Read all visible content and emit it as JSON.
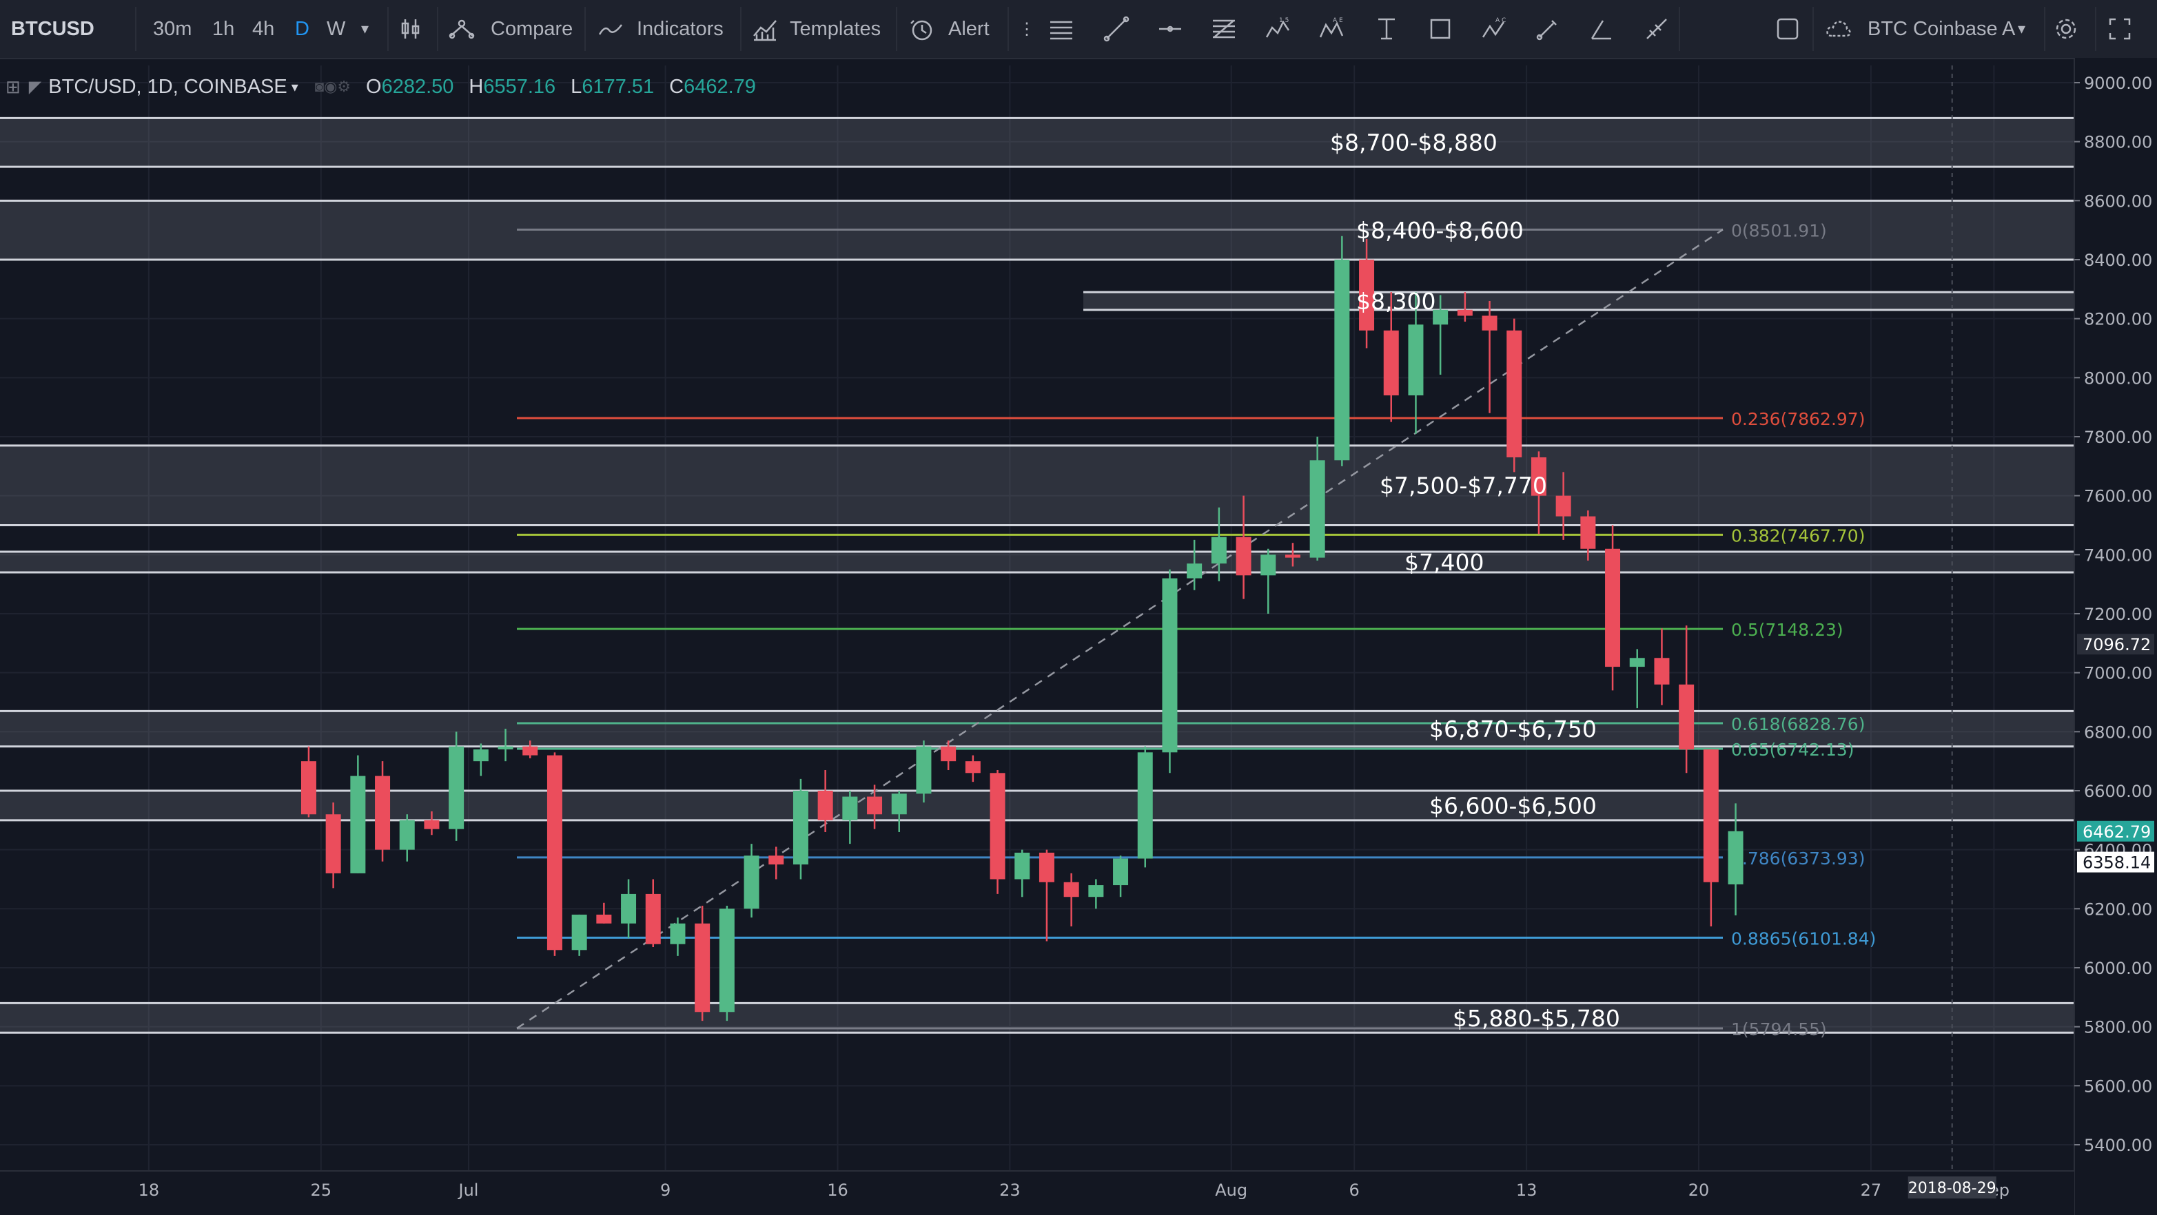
{
  "toolbar": {
    "symbol": "BTCUSD",
    "intervals": [
      "30m",
      "1h",
      "4h",
      "D",
      "W"
    ],
    "active_interval": "D",
    "compare_label": "Compare",
    "indicators_label": "Indicators",
    "templates_label": "Templates",
    "alert_label": "Alert",
    "layout_name": "BTC Coinbase A",
    "icons": [
      "chart-type-icon",
      "compare-icon",
      "indicators-icon",
      "templates-icon",
      "alert-icon",
      "horizontal-lines-icon",
      "trend-line-icon",
      "horizontal-ray-icon",
      "fib-retracement-icon",
      "pattern-15-icon",
      "pattern-ae-icon",
      "pattern-ac-icon",
      "text-tool-icon",
      "rectangle-icon",
      "brush-icon",
      "angle-icon",
      "measure-icon",
      "fullscreen-icon",
      "settings-icon",
      "cloud-icon"
    ]
  },
  "legend": {
    "title": "BTC/USD, 1D, COINBASE",
    "o_label": "O",
    "o_value": "6282.50",
    "h_label": "H",
    "h_value": "6557.16",
    "l_label": "L",
    "l_value": "6177.51",
    "c_label": "C",
    "c_value": "6462.79"
  },
  "chart_data": {
    "type": "candlestick",
    "symbol": "BTC/USD",
    "interval": "1D",
    "exchange": "COINBASE",
    "ylim": [
      5300,
      9100
    ],
    "y_ticks": [
      "9000.00",
      "8800.00",
      "8600.00",
      "8400.00",
      "8200.00",
      "8000.00",
      "7800.00",
      "7600.00",
      "7400.00",
      "7200.00",
      "7000.00",
      "6800.00",
      "6600.00",
      "6400.00",
      "6200.00",
      "6000.00",
      "5800.00",
      "5600.00",
      "5400.00"
    ],
    "x_ticks": [
      "18",
      "25",
      "Jul",
      "9",
      "16",
      "23",
      "Aug",
      "6",
      "13",
      "20",
      "27",
      "Sep"
    ],
    "price_labels": [
      {
        "value": 7096.72,
        "text": "7096.72",
        "color": "#2a2e39"
      },
      {
        "value": 6462.79,
        "text": "6462.79",
        "color": "#26a69a"
      },
      {
        "value": 6358.14,
        "text": "6358.14",
        "color": "#ffffff"
      }
    ],
    "time_label": "2018-08-29",
    "first_day_offset": -6.5,
    "candles": [
      [
        6700,
        6750,
        6510,
        6520
      ],
      [
        6520,
        6560,
        6270,
        6320
      ],
      [
        6320,
        6720,
        6320,
        6650
      ],
      [
        6650,
        6700,
        6360,
        6400
      ],
      [
        6400,
        6520,
        6360,
        6500
      ],
      [
        6500,
        6530,
        6450,
        6470
      ],
      [
        6470,
        6800,
        6430,
        6750
      ],
      [
        6700,
        6760,
        6650,
        6740
      ],
      [
        6740,
        6810,
        6700,
        6750
      ],
      [
        6750,
        6770,
        6710,
        6720
      ],
      [
        6720,
        6730,
        6040,
        6060
      ],
      [
        6060,
        6180,
        6040,
        6180
      ],
      [
        6180,
        6220,
        6150,
        6150
      ],
      [
        6150,
        6300,
        6100,
        6250
      ],
      [
        6250,
        6300,
        6070,
        6080
      ],
      [
        6080,
        6170,
        6040,
        6150
      ],
      [
        6150,
        6210,
        5820,
        5850
      ],
      [
        5850,
        6210,
        5820,
        6200
      ],
      [
        6200,
        6420,
        6170,
        6380
      ],
      [
        6380,
        6410,
        6300,
        6350
      ],
      [
        6350,
        6640,
        6300,
        6600
      ],
      [
        6600,
        6670,
        6460,
        6500
      ],
      [
        6500,
        6600,
        6420,
        6580
      ],
      [
        6580,
        6620,
        6470,
        6520
      ],
      [
        6520,
        6600,
        6460,
        6590
      ],
      [
        6590,
        6770,
        6560,
        6750
      ],
      [
        6750,
        6770,
        6670,
        6700
      ],
      [
        6700,
        6720,
        6630,
        6660
      ],
      [
        6660,
        6670,
        6250,
        6300
      ],
      [
        6300,
        6400,
        6240,
        6390
      ],
      [
        6390,
        6400,
        6090,
        6290
      ],
      [
        6290,
        6320,
        6140,
        6240
      ],
      [
        6240,
        6300,
        6200,
        6280
      ],
      [
        6280,
        6380,
        6240,
        6370
      ],
      [
        6370,
        6750,
        6340,
        6730
      ],
      [
        6730,
        7350,
        6660,
        7320
      ],
      [
        7320,
        7450,
        7280,
        7370
      ],
      [
        7370,
        7560,
        7310,
        7460
      ],
      [
        7460,
        7600,
        7250,
        7330
      ],
      [
        7330,
        7420,
        7200,
        7400
      ],
      [
        7400,
        7440,
        7360,
        7390
      ],
      [
        7390,
        7800,
        7380,
        7720
      ],
      [
        7720,
        8480,
        7700,
        8400
      ],
      [
        8400,
        8470,
        8100,
        8160
      ],
      [
        8160,
        8290,
        7850,
        7940
      ],
      [
        7940,
        8290,
        7810,
        8180
      ],
      [
        8180,
        8280,
        8010,
        8230
      ],
      [
        8230,
        8290,
        8190,
        8210
      ],
      [
        8210,
        8260,
        7880,
        8160
      ],
      [
        8160,
        8200,
        7680,
        7730
      ],
      [
        7730,
        7750,
        7470,
        7600
      ],
      [
        7600,
        7680,
        7450,
        7530
      ],
      [
        7530,
        7550,
        7380,
        7420
      ],
      [
        7420,
        7500,
        6940,
        7020
      ],
      [
        7020,
        7080,
        6880,
        7050
      ],
      [
        7050,
        7150,
        6890,
        6960
      ],
      [
        6960,
        7160,
        6660,
        6740
      ],
      [
        6740,
        6740,
        6140,
        6290
      ],
      [
        6282.5,
        6557.16,
        6177.51,
        6462.79
      ]
    ],
    "zones": [
      {
        "label": "$8,700-$8,880",
        "top": 8880,
        "bottom": 8715
      },
      {
        "label": "$8,400-$8,600",
        "top": 8600,
        "bottom": 8400
      },
      {
        "label": "$8,300",
        "top": 8290,
        "bottom": 8230
      },
      {
        "label": "$7,500-$7,770",
        "top": 7770,
        "bottom": 7500
      },
      {
        "label": "$7,400",
        "top": 7410,
        "bottom": 7340
      },
      {
        "label": "$6,870-$6,750",
        "top": 6870,
        "bottom": 6750
      },
      {
        "label": "$6,600-$6,500",
        "top": 6600,
        "bottom": 6500
      },
      {
        "label": "$5,880-$5,780",
        "top": 5880,
        "bottom": 5780
      }
    ],
    "fib": {
      "start_day": 2,
      "end_day": 22,
      "levels": [
        {
          "ratio": "0",
          "value": 8501.91,
          "text": "0(8501.91)",
          "color": "#787b86"
        },
        {
          "ratio": "0.236",
          "value": 7862.97,
          "text": "0.236(7862.97)",
          "color": "#e04e3d"
        },
        {
          "ratio": "0.382",
          "value": 7467.7,
          "text": "0.382(7467.70)",
          "color": "#a5c43a"
        },
        {
          "ratio": "0.5",
          "value": 7148.23,
          "text": "0.5(7148.23)",
          "color": "#4caf50"
        },
        {
          "ratio": "0.618",
          "value": 6828.76,
          "text": "0.618(6828.76)",
          "color": "#4fb38a"
        },
        {
          "ratio": "0.65",
          "value": 6742.13,
          "text": "0.65(6742.13)",
          "color": "#4fb38a"
        },
        {
          "ratio": "0.786",
          "value": 6373.93,
          "text": "0.786(6373.93)",
          "color": "#3f86c4"
        },
        {
          "ratio": "0.8865",
          "value": 6101.84,
          "text": "0.8865(6101.84)",
          "color": "#3f9bd6"
        },
        {
          "ratio": "1",
          "value": 5794.55,
          "text": "1(5794.55)",
          "color": "#787b86"
        }
      ]
    },
    "grid": true,
    "up_color": "#53b987",
    "down_color": "#eb4d5c"
  }
}
